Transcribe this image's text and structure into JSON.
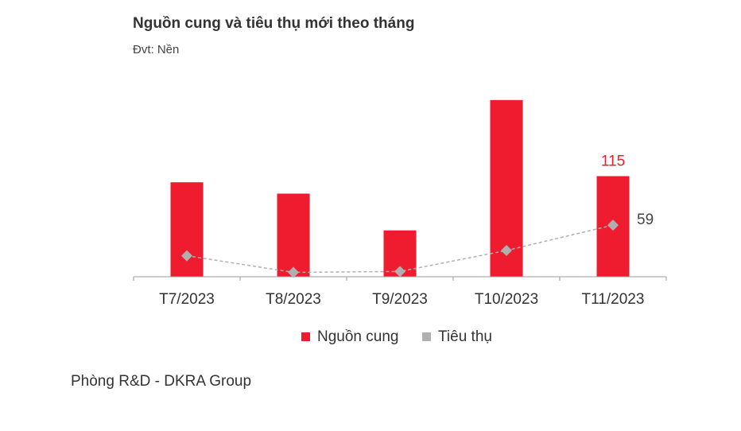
{
  "chart_data": {
    "type": "bar",
    "title": "Nguồn cung và tiêu thụ mới theo tháng",
    "subtitle": "Đvt: Nền",
    "categories": [
      "T7/2023",
      "T8/2023",
      "T9/2023",
      "T10/2023",
      "T11/2023"
    ],
    "series": [
      {
        "name": "Nguồn cung",
        "type": "bar",
        "color": "#ee1c2e",
        "values": [
          108,
          95,
          53,
          202,
          115
        ],
        "labels": [
          null,
          null,
          null,
          null,
          "115"
        ]
      },
      {
        "name": "Tiêu thụ",
        "type": "line",
        "color": "#b0b0b0",
        "values": [
          24,
          5,
          6,
          30,
          59
        ],
        "labels": [
          null,
          null,
          null,
          null,
          "59"
        ]
      }
    ],
    "legend_position": "bottom",
    "grid": false
  },
  "footer": "Phòng R&D - DKRA Group"
}
